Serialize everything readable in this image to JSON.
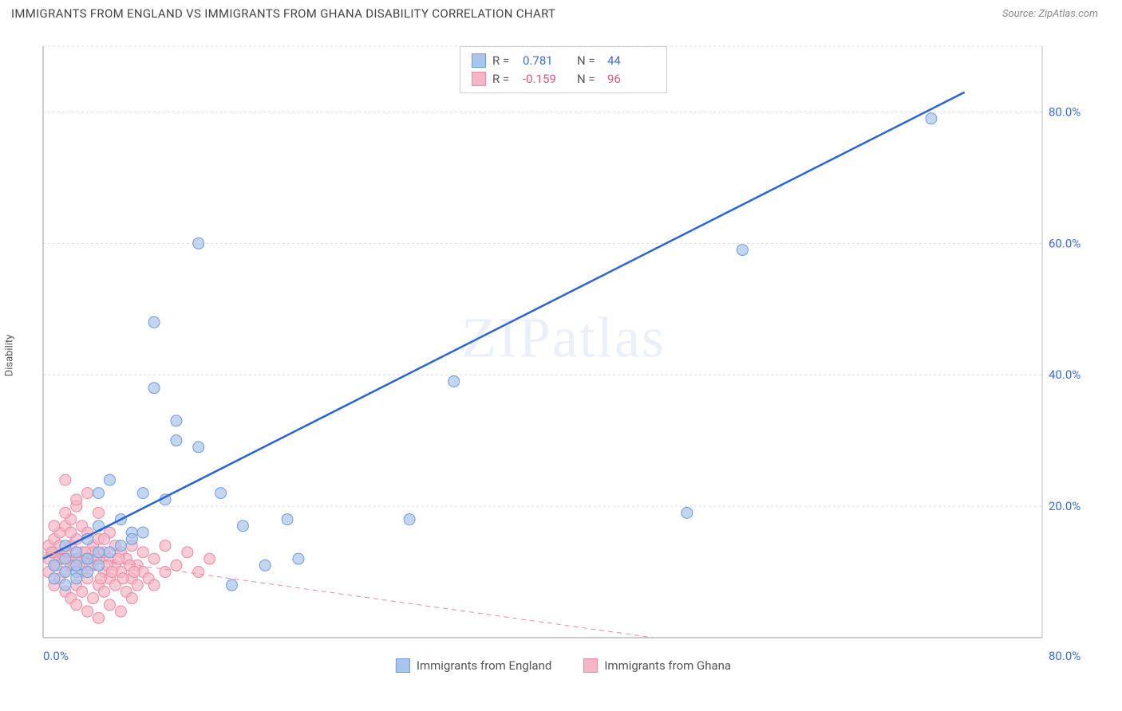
{
  "header": {
    "title": "IMMIGRANTS FROM ENGLAND VS IMMIGRANTS FROM GHANA DISABILITY CORRELATION CHART",
    "source_prefix": "Source: ",
    "source_name": "ZipAtlas.com"
  },
  "y_axis_label": "Disability",
  "watermark": {
    "bold": "ZIP",
    "light": "atlas"
  },
  "axis": {
    "x_min_label": "0.0%",
    "x_max_label": "80.0%",
    "y_ticks": [
      "20.0%",
      "40.0%",
      "60.0%",
      "80.0%"
    ],
    "tick_label_color": "#3b6bd6",
    "grid_color": "#dddddd",
    "axis_line_color": "#bbbbbb"
  },
  "series": [
    {
      "name": "Immigrants from England",
      "color_fill": "#a8c5ec",
      "color_stroke": "#6f9bd8",
      "color_value": "#3b6bd6",
      "R": "0.781",
      "N": "44",
      "line": {
        "x1": 0,
        "y1": 12,
        "x2": 83,
        "y2": 83,
        "dash": false,
        "width": 2.5,
        "color": "#2a62d8"
      },
      "points": [
        [
          1,
          11
        ],
        [
          2,
          12
        ],
        [
          2,
          14
        ],
        [
          3,
          10
        ],
        [
          3,
          13
        ],
        [
          4,
          12
        ],
        [
          4,
          15
        ],
        [
          5,
          17
        ],
        [
          5,
          22
        ],
        [
          6,
          24
        ],
        [
          7,
          18
        ],
        [
          8,
          16
        ],
        [
          9,
          22
        ],
        [
          10,
          38
        ],
        [
          10,
          48
        ],
        [
          11,
          21
        ],
        [
          12,
          30
        ],
        [
          12,
          33
        ],
        [
          14,
          60
        ],
        [
          14,
          29
        ],
        [
          16,
          22
        ],
        [
          17,
          8
        ],
        [
          18,
          17
        ],
        [
          20,
          11
        ],
        [
          22,
          18
        ],
        [
          23,
          12
        ],
        [
          33,
          18
        ],
        [
          37,
          39
        ],
        [
          58,
          19
        ],
        [
          63,
          59
        ],
        [
          80,
          79
        ],
        [
          1,
          9
        ],
        [
          2,
          8
        ],
        [
          3,
          9
        ],
        [
          4,
          10
        ],
        [
          5,
          11
        ],
        [
          6,
          13
        ],
        [
          7,
          14
        ],
        [
          8,
          15
        ],
        [
          9,
          16
        ],
        [
          3,
          11
        ],
        [
          4,
          12
        ],
        [
          5,
          13
        ],
        [
          2,
          10
        ]
      ]
    },
    {
      "name": "Immigrants from Ghana",
      "color_fill": "#f4b6c6",
      "color_stroke": "#e88aa3",
      "color_value": "#d85a7a",
      "R": "-0.159",
      "N": "96",
      "line": {
        "x1": 0,
        "y1": 13,
        "x2": 55,
        "y2": 0,
        "dash": true,
        "width": 1,
        "color": "#e88aa3"
      },
      "points": [
        [
          0.5,
          10
        ],
        [
          0.5,
          12
        ],
        [
          0.5,
          14
        ],
        [
          1,
          8
        ],
        [
          1,
          11
        ],
        [
          1,
          13
        ],
        [
          1,
          15
        ],
        [
          1.5,
          9
        ],
        [
          1.5,
          12
        ],
        [
          1.5,
          16
        ],
        [
          2,
          7
        ],
        [
          2,
          10
        ],
        [
          2,
          13
        ],
        [
          2,
          17
        ],
        [
          2,
          24
        ],
        [
          2.5,
          6
        ],
        [
          2.5,
          11
        ],
        [
          2.5,
          14
        ],
        [
          2.5,
          18
        ],
        [
          3,
          5
        ],
        [
          3,
          8
        ],
        [
          3,
          12
        ],
        [
          3,
          15
        ],
        [
          3,
          20
        ],
        [
          3.5,
          7
        ],
        [
          3.5,
          10
        ],
        [
          3.5,
          13
        ],
        [
          3.5,
          17
        ],
        [
          4,
          4
        ],
        [
          4,
          9
        ],
        [
          4,
          12
        ],
        [
          4,
          16
        ],
        [
          4,
          22
        ],
        [
          4.5,
          6
        ],
        [
          4.5,
          11
        ],
        [
          4.5,
          14
        ],
        [
          5,
          3
        ],
        [
          5,
          8
        ],
        [
          5,
          12
        ],
        [
          5,
          15
        ],
        [
          5,
          19
        ],
        [
          5.5,
          7
        ],
        [
          5.5,
          10
        ],
        [
          5.5,
          13
        ],
        [
          6,
          5
        ],
        [
          6,
          9
        ],
        [
          6,
          12
        ],
        [
          6,
          16
        ],
        [
          6.5,
          8
        ],
        [
          6.5,
          11
        ],
        [
          6.5,
          14
        ],
        [
          7,
          4
        ],
        [
          7,
          10
        ],
        [
          7,
          13
        ],
        [
          7.5,
          7
        ],
        [
          7.5,
          12
        ],
        [
          8,
          6
        ],
        [
          8,
          9
        ],
        [
          8,
          14
        ],
        [
          8.5,
          8
        ],
        [
          8.5,
          11
        ],
        [
          9,
          10
        ],
        [
          9,
          13
        ],
        [
          9.5,
          9
        ],
        [
          10,
          8
        ],
        [
          10,
          12
        ],
        [
          11,
          10
        ],
        [
          11,
          14
        ],
        [
          12,
          11
        ],
        [
          13,
          13
        ],
        [
          14,
          10
        ],
        [
          15,
          12
        ],
        [
          1,
          17
        ],
        [
          2,
          19
        ],
        [
          3,
          21
        ],
        [
          1.5,
          14
        ],
        [
          2.5,
          16
        ],
        [
          3.5,
          11
        ],
        [
          4.5,
          13
        ],
        [
          5.5,
          15
        ],
        [
          0.8,
          13
        ],
        [
          1.2,
          11
        ],
        [
          1.8,
          12
        ],
        [
          2.2,
          13
        ],
        [
          2.8,
          11
        ],
        [
          3.2,
          12
        ],
        [
          3.8,
          13
        ],
        [
          4.2,
          11
        ],
        [
          4.8,
          12
        ],
        [
          5.2,
          9
        ],
        [
          5.8,
          11
        ],
        [
          6.2,
          10
        ],
        [
          6.8,
          12
        ],
        [
          7.2,
          9
        ],
        [
          7.8,
          11
        ],
        [
          8.2,
          10
        ]
      ]
    }
  ],
  "legend_bottom": [
    {
      "label": "Immigrants from England",
      "swatch_fill": "#a8c5ec",
      "swatch_stroke": "#6f9bd8"
    },
    {
      "label": "Immigrants from Ghana",
      "swatch_fill": "#f4b6c6",
      "swatch_stroke": "#e88aa3"
    }
  ],
  "legend_top_labels": {
    "R": "R  =",
    "N": "N  ="
  },
  "chart": {
    "xlim": [
      0,
      90
    ],
    "ylim": [
      0,
      90
    ],
    "marker_radius": 7,
    "marker_opacity": 0.7,
    "background": "#ffffff"
  }
}
